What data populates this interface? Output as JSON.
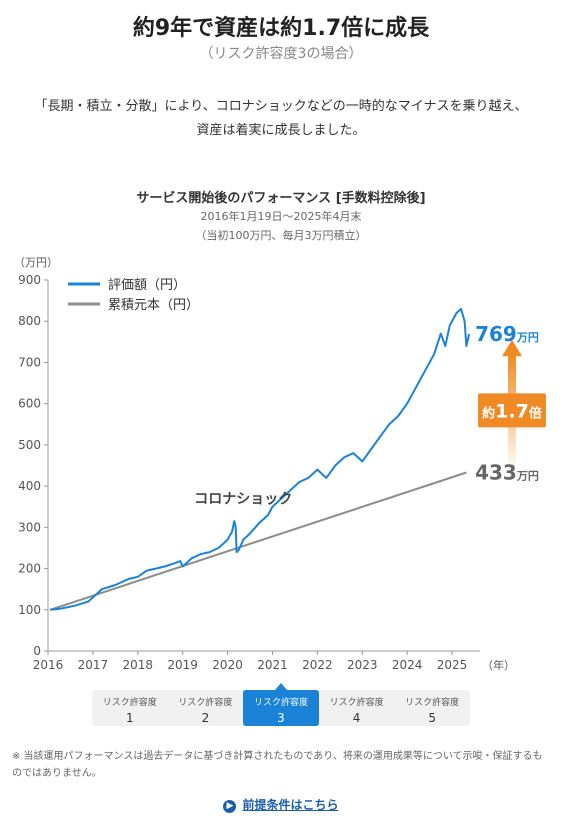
{
  "header": {
    "title": "約9年で資産は約1.7倍に成長",
    "subtitle": "（リスク許容度3の場合）"
  },
  "lead": {
    "line1": "「長期・積立・分散」により、コロナショックなどの一時的なマイナスを乗り越え、",
    "line2": "資産は着実に成長しました。"
  },
  "chart_header": {
    "title": "サービス開始後のパフォーマンス [手数料控除後]",
    "period": "2016年1月19日〜2025年4月末",
    "condition": "（当初100万円、毎月3万円積立）"
  },
  "chart_data": {
    "type": "line",
    "y_unit_label": "（万円）",
    "x_unit_label": "（年）",
    "ylim": [
      0,
      900
    ],
    "yticks": [
      0,
      100,
      200,
      300,
      400,
      500,
      600,
      700,
      800,
      900
    ],
    "xlim": [
      2016,
      2025.4
    ],
    "xticks": [
      2016,
      2017,
      2018,
      2019,
      2020,
      2021,
      2022,
      2023,
      2024,
      2025
    ],
    "legend_position": "top-left",
    "series": [
      {
        "name": "評価額（円）",
        "color": "#1a83d8",
        "points": [
          [
            2016.05,
            100
          ],
          [
            2016.3,
            103
          ],
          [
            2016.6,
            110
          ],
          [
            2016.9,
            120
          ],
          [
            2017.0,
            130
          ],
          [
            2017.2,
            150
          ],
          [
            2017.5,
            160
          ],
          [
            2017.8,
            175
          ],
          [
            2018.0,
            180
          ],
          [
            2018.2,
            195
          ],
          [
            2018.4,
            200
          ],
          [
            2018.6,
            205
          ],
          [
            2018.8,
            212
          ],
          [
            2018.95,
            218
          ],
          [
            2019.0,
            205
          ],
          [
            2019.2,
            225
          ],
          [
            2019.4,
            235
          ],
          [
            2019.6,
            240
          ],
          [
            2019.8,
            250
          ],
          [
            2020.0,
            270
          ],
          [
            2020.1,
            290
          ],
          [
            2020.15,
            315
          ],
          [
            2020.18,
            300
          ],
          [
            2020.2,
            240
          ],
          [
            2020.25,
            245
          ],
          [
            2020.35,
            270
          ],
          [
            2020.5,
            285
          ],
          [
            2020.7,
            310
          ],
          [
            2020.9,
            330
          ],
          [
            2021.0,
            350
          ],
          [
            2021.2,
            370
          ],
          [
            2021.4,
            390
          ],
          [
            2021.6,
            410
          ],
          [
            2021.8,
            420
          ],
          [
            2022.0,
            440
          ],
          [
            2022.2,
            420
          ],
          [
            2022.4,
            450
          ],
          [
            2022.6,
            470
          ],
          [
            2022.8,
            480
          ],
          [
            2023.0,
            460
          ],
          [
            2023.2,
            490
          ],
          [
            2023.4,
            520
          ],
          [
            2023.6,
            550
          ],
          [
            2023.8,
            570
          ],
          [
            2024.0,
            600
          ],
          [
            2024.2,
            640
          ],
          [
            2024.4,
            680
          ],
          [
            2024.6,
            720
          ],
          [
            2024.75,
            770
          ],
          [
            2024.85,
            740
          ],
          [
            2024.95,
            790
          ],
          [
            2025.1,
            820
          ],
          [
            2025.2,
            830
          ],
          [
            2025.28,
            800
          ],
          [
            2025.32,
            740
          ],
          [
            2025.38,
            769
          ]
        ]
      },
      {
        "name": "累積元本（円）",
        "color": "#8c8c8c",
        "points": [
          [
            2016.05,
            100
          ],
          [
            2025.32,
            433
          ]
        ]
      }
    ],
    "annotations": {
      "covid_label": "コロナショック",
      "final_value": "769",
      "final_principal": "433",
      "unit": "万円",
      "multiplier_prefix": "約",
      "multiplier_value": "1.7",
      "multiplier_suffix": "倍"
    },
    "colors": {
      "axis": "#999999",
      "text": "#555555",
      "arrow": "#f08a24",
      "value_blue": "#1a83d8"
    }
  },
  "risk_tabs": {
    "items": [
      {
        "label": "リスク許容度",
        "num": "1"
      },
      {
        "label": "リスク許容度",
        "num": "2"
      },
      {
        "label": "リスク許容度",
        "num": "3"
      },
      {
        "label": "リスク許容度",
        "num": "4"
      },
      {
        "label": "リスク許容度",
        "num": "5"
      }
    ],
    "active_index": 2
  },
  "footnote": "※ 当該運用パフォーマンスは過去データに基づき計算されたものであり、将来の運用成果等について示唆・保証するものではありません。",
  "link": {
    "icon": "chevron-right-icon",
    "label": "前提条件はこちら"
  }
}
